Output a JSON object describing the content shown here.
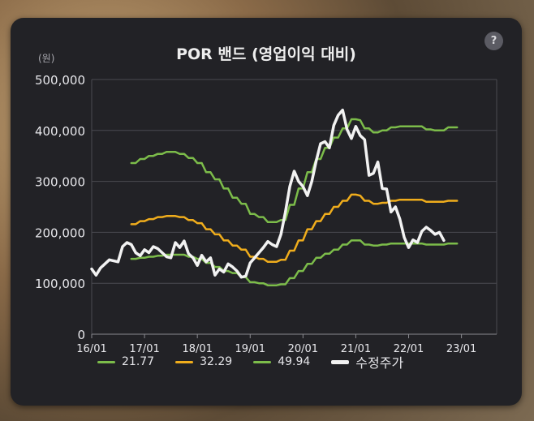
{
  "title": "POR 밴드 (영업이익 대비)",
  "unit": "(원)",
  "help_icon": "?",
  "chart_data": {
    "type": "line",
    "title": "POR 밴드 (영업이익 대비)",
    "ylabel": "(원)",
    "ylim": [
      0,
      500000
    ],
    "yticks": [
      0,
      100000,
      200000,
      300000,
      400000,
      500000
    ],
    "ytick_labels": [
      "0",
      "100,000",
      "200,000",
      "300,000",
      "400,000",
      "500,000"
    ],
    "xlim": [
      0,
      92
    ],
    "xticks": [
      0,
      12,
      24,
      36,
      48,
      60,
      72,
      84
    ],
    "xtick_labels": [
      "16/01",
      "17/01",
      "18/01",
      "19/01",
      "20/01",
      "21/01",
      "22/01",
      "23/01"
    ],
    "grid": true,
    "legend_position": "bottom",
    "series": [
      {
        "name": "21.77",
        "color": "#7cbc4a",
        "x_start": 9,
        "values": [
          148000,
          148000,
          150000,
          150000,
          152000,
          152000,
          154000,
          154000,
          156000,
          156000,
          156000,
          156000,
          156000,
          152000,
          152000,
          148000,
          148000,
          140000,
          140000,
          132000,
          132000,
          124000,
          124000,
          120000,
          120000,
          112000,
          112000,
          102000,
          102000,
          100000,
          100000,
          96000,
          96000,
          96000,
          98000,
          98000,
          110000,
          110000,
          124000,
          124000,
          138000,
          138000,
          150000,
          150000,
          158000,
          158000,
          166000,
          166000,
          176000,
          176000,
          184000,
          184000,
          184000,
          176000,
          176000,
          174000,
          174000,
          176000,
          176000,
          178000,
          178000,
          178000,
          178000,
          178000,
          178000,
          178000,
          178000,
          176000,
          176000,
          176000,
          176000,
          176000,
          178000,
          178000,
          178000
        ]
      },
      {
        "name": "32.29",
        "color": "#f0ad1c",
        "x_start": 9,
        "values": [
          216000,
          216000,
          222000,
          222000,
          226000,
          226000,
          230000,
          230000,
          232000,
          232000,
          232000,
          230000,
          230000,
          224000,
          224000,
          218000,
          218000,
          206000,
          206000,
          196000,
          196000,
          184000,
          184000,
          174000,
          174000,
          166000,
          166000,
          152000,
          152000,
          148000,
          148000,
          142000,
          142000,
          142000,
          146000,
          146000,
          164000,
          164000,
          184000,
          184000,
          206000,
          206000,
          222000,
          222000,
          236000,
          236000,
          250000,
          250000,
          262000,
          262000,
          274000,
          274000,
          272000,
          262000,
          262000,
          256000,
          256000,
          258000,
          258000,
          262000,
          262000,
          264000,
          264000,
          264000,
          264000,
          264000,
          264000,
          260000,
          260000,
          260000,
          260000,
          260000,
          262000,
          262000,
          262000
        ]
      },
      {
        "name": "49.94",
        "color": "#7cbc4a",
        "x_start": 9,
        "values": [
          336000,
          336000,
          344000,
          344000,
          350000,
          350000,
          354000,
          354000,
          358000,
          358000,
          358000,
          354000,
          354000,
          346000,
          346000,
          336000,
          336000,
          318000,
          318000,
          304000,
          304000,
          286000,
          286000,
          268000,
          268000,
          256000,
          256000,
          236000,
          236000,
          230000,
          230000,
          220000,
          220000,
          220000,
          224000,
          224000,
          254000,
          254000,
          286000,
          286000,
          318000,
          318000,
          344000,
          344000,
          366000,
          366000,
          386000,
          386000,
          404000,
          404000,
          422000,
          422000,
          420000,
          404000,
          404000,
          396000,
          396000,
          400000,
          400000,
          406000,
          406000,
          408000,
          408000,
          408000,
          408000,
          408000,
          408000,
          402000,
          402000,
          400000,
          400000,
          400000,
          406000,
          406000,
          406000
        ]
      },
      {
        "name": "수정주가",
        "color": "#f2f2f2",
        "x_start": 0,
        "values": [
          128000,
          116000,
          130000,
          138000,
          146000,
          144000,
          142000,
          172000,
          180000,
          176000,
          160000,
          154000,
          166000,
          160000,
          172000,
          168000,
          160000,
          152000,
          150000,
          180000,
          170000,
          183000,
          158000,
          150000,
          135000,
          155000,
          142000,
          150000,
          116000,
          128000,
          122000,
          138000,
          132000,
          124000,
          112000,
          114000,
          140000,
          150000,
          160000,
          170000,
          182000,
          176000,
          172000,
          196000,
          240000,
          290000,
          320000,
          300000,
          290000,
          272000,
          300000,
          340000,
          374000,
          378000,
          366000,
          410000,
          430000,
          440000,
          402000,
          384000,
          408000,
          390000,
          382000,
          312000,
          316000,
          338000,
          286000,
          285000,
          240000,
          250000,
          226000,
          190000,
          170000,
          185000,
          180000,
          202000,
          210000,
          204000,
          196000,
          200000,
          184000
        ]
      }
    ]
  },
  "legend": [
    {
      "label": "21.77",
      "color": "#7cbc4a"
    },
    {
      "label": "32.29",
      "color": "#f0ad1c"
    },
    {
      "label": "49.94",
      "color": "#7cbc4a"
    },
    {
      "label": "수정주가",
      "color": "#f2f2f2"
    }
  ]
}
